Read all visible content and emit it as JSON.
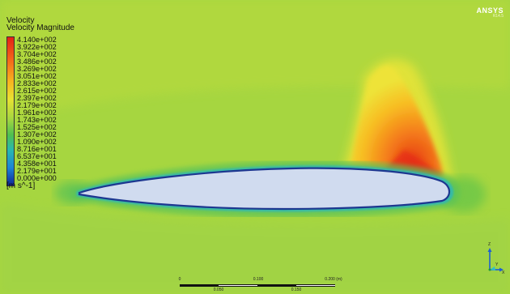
{
  "legend": {
    "title": "Velocity",
    "subtitle": "Velocity Magnitude",
    "ticks": [
      "4.140e+002",
      "3.922e+002",
      "3.704e+002",
      "3.486e+002",
      "3.269e+002",
      "3.051e+002",
      "2.833e+002",
      "2.615e+002",
      "2.397e+002",
      "2.179e+002",
      "1.961e+002",
      "1.743e+002",
      "1.525e+002",
      "1.307e+002",
      "1.090e+002",
      "8.716e+001",
      "6.537e+001",
      "4.358e+001",
      "2.179e+001",
      "0.000e+000"
    ],
    "units": "[m s^-1]"
  },
  "logo": {
    "main": "ANSYS",
    "sub": "R14.5"
  },
  "scale": {
    "top_labels": [
      "0",
      "0.100",
      "0.200 (m)"
    ],
    "bottom_labels": [
      "0.050",
      "0.150"
    ]
  },
  "axes": {
    "x": "X",
    "y": "Y",
    "z": "Z"
  },
  "colors": {
    "background": "#a6d640",
    "airfoil": "#d0dbef",
    "airfoil_edge": "#1d3790",
    "max": "#e42016",
    "min": "#102696"
  }
}
